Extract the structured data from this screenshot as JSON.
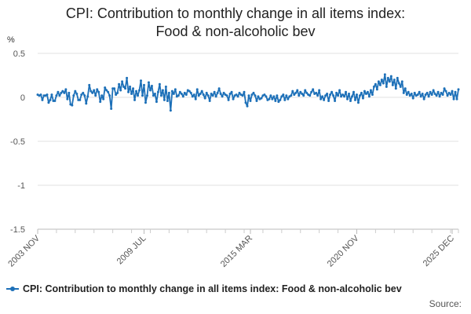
{
  "chart_data": {
    "type": "line",
    "title_line1": "CPI: Contribution to monthly change in all items index:",
    "title_line2": "Food & non-alcoholic bev",
    "ylabel": "%",
    "ylim": [
      -1.5,
      0.5
    ],
    "yticks": [
      0.5,
      0,
      -0.5,
      -1,
      -1.5
    ],
    "ytick_labels": [
      "0.5",
      "0",
      "-0.5",
      "-1",
      "-1.5"
    ],
    "x_start": "2003 NOV",
    "x_end": "2025 DEC",
    "xtick_labels": [
      {
        "label": "2003 NOV",
        "index": 0
      },
      {
        "label": "2009 JUL",
        "index": 68
      },
      {
        "label": "2015 MAR",
        "index": 136
      },
      {
        "label": "2020 NOV",
        "index": 204
      },
      {
        "label": "2025 DEC",
        "index": 265
      }
    ],
    "grid": true,
    "legend": "bottom-left",
    "color": "#1d70b8",
    "series": [
      {
        "name": "CPI: Contribution to monthly change in all items index: Food & non-alcoholic bev",
        "values": [
          0.03,
          0.02,
          0.03,
          -0.03,
          0.02,
          0.02,
          0.03,
          -0.06,
          -0.03,
          0.03,
          -0.04,
          -0.04,
          0.02,
          0.06,
          0.02,
          0.05,
          0.07,
          0.05,
          0.09,
          -0.02,
          0.05,
          -0.08,
          -0.09,
          0.02,
          0.07,
          0.04,
          -0.03,
          -0.03,
          0.03,
          0.05,
          0.02,
          -0.07,
          0.01,
          0.14,
          0.07,
          0.05,
          0.08,
          0.02,
          0.09,
          0.06,
          -0.05,
          0.02,
          -0.02,
          0.11,
          0.08,
          0.06,
          0.02,
          -0.13,
          0.1,
          0.1,
          0.03,
          0.05,
          0.15,
          0.08,
          0.18,
          0.12,
          0.1,
          0.22,
          0.06,
          0.12,
          0.04,
          0.1,
          -0.03,
          0.07,
          0.02,
          0.08,
          0.19,
          0.02,
          0.14,
          -0.06,
          0.02,
          0.17,
          0.08,
          0.13,
          0.02,
          0.04,
          -0.05,
          0.06,
          0.15,
          0.02,
          0.08,
          -0.03,
          0.12,
          -0.04,
          0.05,
          -0.15,
          0.07,
          0.04,
          0.09,
          0.01,
          0.02,
          0.06,
          0.04,
          0.01,
          0.05,
          0.03,
          0.08,
          0.07,
          0.05,
          0.01,
          0.03,
          -0.02,
          0.09,
          0.02,
          0.04,
          0.07,
          0.03,
          -0.01,
          0.05,
          0.02,
          -0.04,
          0.04,
          0.02,
          0.06,
          0.01,
          0.05,
          0.1,
          0.04,
          0.01,
          0.05,
          0.03,
          0.02,
          -0.03,
          0.04,
          0.06,
          -0.02,
          0.02,
          0.03,
          0.01,
          0.05,
          0.03,
          0.02,
          0.06,
          -0.06,
          -0.1,
          0.02,
          -0.04,
          0.03,
          0.05,
          0.02,
          -0.04,
          0.01,
          -0.02,
          -0.01,
          0.02,
          0.03,
          0.01,
          -0.03,
          -0.02,
          0.02,
          -0.02,
          0.01,
          -0.04,
          0.02,
          -0.05,
          -0.03,
          0.01,
          0.03,
          -0.03,
          0.02,
          -0.02,
          0.01,
          0.02,
          0.07,
          0.03,
          0.05,
          0.08,
          0.02,
          0.06,
          0.04,
          0.02,
          0.08,
          0.05,
          0.03,
          0.02,
          0.06,
          0.09,
          0.04,
          0.05,
          0.02,
          0.08,
          -0.02,
          0.01,
          -0.03,
          0.02,
          0.04,
          -0.04,
          0.03,
          0.06,
          0.02,
          -0.04,
          0.05,
          0.02,
          0.08,
          0.01,
          0.03,
          0.01,
          0.06,
          -0.02,
          0.04,
          -0.04,
          0.01,
          0.06,
          -0.03,
          0.03,
          -0.06,
          0.02,
          0.05,
          -0.01,
          0.07,
          0.04,
          0.06,
          0.01,
          0.08,
          0.03,
          0.12,
          0.15,
          0.09,
          0.18,
          0.14,
          0.2,
          0.16,
          0.26,
          0.12,
          0.22,
          0.18,
          0.24,
          0.14,
          0.2,
          0.1,
          0.22,
          0.16,
          0.12,
          0.18,
          0.05,
          0.1,
          0.03,
          0.06,
          0.02,
          0.04,
          -0.01,
          0.05,
          0.02,
          0.03,
          0.06,
          0.01,
          0.04,
          -0.02,
          0.03,
          0.05,
          0.01,
          0.06,
          0.03,
          0.08,
          0.04,
          0.02,
          0.06,
          0.01,
          0.05,
          0.03,
          0.1,
          0.07,
          0.02,
          0.05,
          0.03,
          0.07,
          -0.02,
          0.06,
          -0.02,
          0.09
        ]
      }
    ]
  },
  "legend": {
    "label": "CPI: Contribution to monthly change in all items index: Food & non-alcoholic bev"
  },
  "footer": {
    "source_label": "Source:"
  }
}
